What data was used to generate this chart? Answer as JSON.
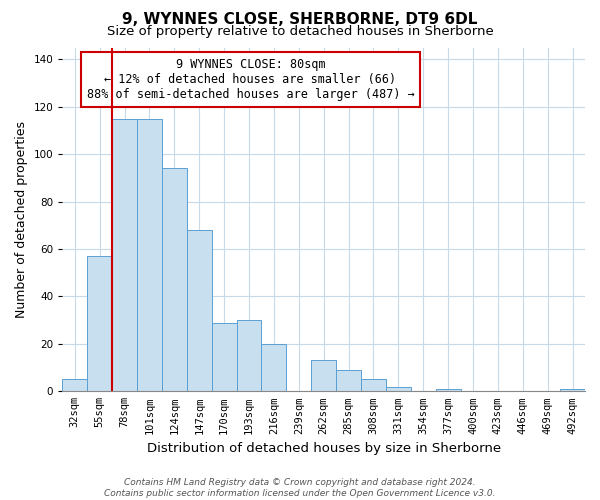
{
  "title": "9, WYNNES CLOSE, SHERBORNE, DT9 6DL",
  "subtitle": "Size of property relative to detached houses in Sherborne",
  "xlabel": "Distribution of detached houses by size in Sherborne",
  "ylabel": "Number of detached properties",
  "bar_labels": [
    "32sqm",
    "55sqm",
    "78sqm",
    "101sqm",
    "124sqm",
    "147sqm",
    "170sqm",
    "193sqm",
    "216sqm",
    "239sqm",
    "262sqm",
    "285sqm",
    "308sqm",
    "331sqm",
    "354sqm",
    "377sqm",
    "400sqm",
    "423sqm",
    "446sqm",
    "469sqm",
    "492sqm"
  ],
  "bar_values": [
    5,
    57,
    115,
    115,
    94,
    68,
    29,
    30,
    20,
    0,
    13,
    9,
    5,
    2,
    0,
    1,
    0,
    0,
    0,
    0,
    1
  ],
  "bar_color": "#c8dff0",
  "bar_edge_color": "#5a9fd4",
  "vline_color": "#cc0000",
  "vline_bar_index": 2,
  "ylim": [
    0,
    145
  ],
  "yticks": [
    0,
    20,
    40,
    60,
    80,
    100,
    120,
    140
  ],
  "annotation_title": "9 WYNNES CLOSE: 80sqm",
  "annotation_line1": "← 12% of detached houses are smaller (66)",
  "annotation_line2": "88% of semi-detached houses are larger (487) →",
  "footer_line1": "Contains HM Land Registry data © Crown copyright and database right 2024.",
  "footer_line2": "Contains public sector information licensed under the Open Government Licence v3.0.",
  "background_color": "#ffffff",
  "grid_color": "#c8dae8",
  "title_fontsize": 11,
  "subtitle_fontsize": 9.5,
  "xlabel_fontsize": 9.5,
  "ylabel_fontsize": 9,
  "tick_fontsize": 7.5,
  "annotation_fontsize": 8.5,
  "footer_fontsize": 6.5
}
